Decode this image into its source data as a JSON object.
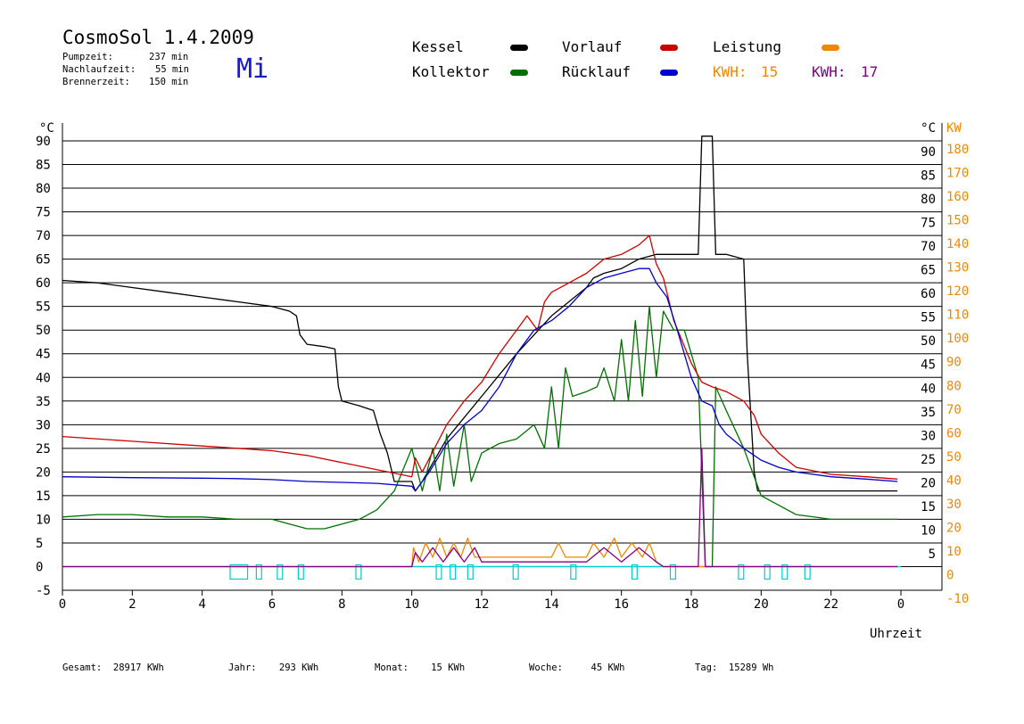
{
  "header": {
    "title": "CosmoSol 1.4.2009",
    "day": "Mi",
    "info": [
      {
        "label": "Pumpzeit:",
        "value": "237 min"
      },
      {
        "label": "Nachlaufzeit:",
        "value": "55 min"
      },
      {
        "label": "Brennerzeit:",
        "value": "150 min"
      }
    ]
  },
  "legend": {
    "kessel": "Kessel",
    "kollektor": "Kollektor",
    "vorlauf": "Vorlauf",
    "ruecklauf": "Rücklauf",
    "leistung": "Leistung",
    "kwh1_label": "KWH:",
    "kwh1_value": "15",
    "kwh2_label": "KWH:",
    "kwh2_value": "17"
  },
  "colors": {
    "kessel": "#000000",
    "kollektor": "#007000",
    "vorlauf": "#cc0000",
    "ruecklauf": "#0000cc",
    "leistung": "#ee8800",
    "kwh2": "#800080",
    "pump": "#00cccc",
    "day": "#1a1acc"
  },
  "footer": {
    "gesamt": "Gesamt:  28917 KWh",
    "jahr": "Jahr:    293 KWh",
    "monat": "Monat:    15 KWh",
    "woche": "Woche:     45 KWh",
    "tag": "Tag:  15289 Wh"
  },
  "chart_data": {
    "type": "line",
    "xlabel": "Uhrzeit",
    "ylabel_left": "°C",
    "ylabel_right_c": "°C",
    "ylabel_right_kw": "KW",
    "xlim": [
      0,
      24
    ],
    "ylim": [
      -5,
      90
    ],
    "ylim_kw": [
      -10,
      180
    ],
    "x_ticks": [
      "0",
      "2",
      "4",
      "6",
      "8",
      "10",
      "12",
      "14",
      "16",
      "18",
      "20",
      "22",
      "0"
    ],
    "y_ticks_left": [
      "-5",
      "0",
      "5",
      "10",
      "15",
      "20",
      "25",
      "30",
      "35",
      "40",
      "45",
      "50",
      "55",
      "60",
      "65",
      "70",
      "75",
      "80",
      "85",
      "90"
    ],
    "y_ticks_right_c": [
      "5",
      "10",
      "15",
      "20",
      "25",
      "30",
      "35",
      "40",
      "45",
      "50",
      "55",
      "60",
      "65",
      "70",
      "75",
      "80",
      "85",
      "90"
    ],
    "y_ticks_right_kw": [
      "-10",
      "0",
      "10",
      "20",
      "30",
      "40",
      "50",
      "60",
      "70",
      "80",
      "90",
      "100",
      "110",
      "120",
      "130",
      "140",
      "150",
      "160",
      "170",
      "180"
    ],
    "grid": true,
    "series": [
      {
        "name": "Kessel",
        "key": "kessel",
        "points": [
          [
            0,
            60.5
          ],
          [
            1,
            60
          ],
          [
            2,
            59
          ],
          [
            3,
            58
          ],
          [
            4,
            57
          ],
          [
            5,
            56
          ],
          [
            6,
            55
          ],
          [
            6.5,
            54
          ],
          [
            6.7,
            53
          ],
          [
            6.8,
            49
          ],
          [
            7,
            47
          ],
          [
            7.5,
            46.5
          ],
          [
            7.8,
            46
          ],
          [
            7.9,
            38
          ],
          [
            8,
            35
          ],
          [
            8.5,
            34
          ],
          [
            8.9,
            33
          ],
          [
            9.1,
            28
          ],
          [
            9.3,
            24
          ],
          [
            9.5,
            18
          ],
          [
            10,
            18
          ],
          [
            10.1,
            16
          ],
          [
            10.3,
            18
          ],
          [
            11,
            27
          ],
          [
            12,
            36
          ],
          [
            13,
            45
          ],
          [
            14,
            53
          ],
          [
            14.5,
            56
          ],
          [
            15,
            59
          ],
          [
            15.2,
            61
          ],
          [
            15.5,
            62
          ],
          [
            16,
            63
          ],
          [
            16.5,
            65
          ],
          [
            17,
            66
          ],
          [
            17.5,
            66
          ],
          [
            18,
            66
          ],
          [
            18.2,
            66
          ],
          [
            18.3,
            91
          ],
          [
            18.6,
            91
          ],
          [
            18.7,
            66
          ],
          [
            19,
            66
          ],
          [
            19.5,
            65
          ],
          [
            19.6,
            45
          ],
          [
            19.8,
            20
          ],
          [
            19.9,
            16
          ],
          [
            21,
            16
          ],
          [
            23.9,
            16
          ]
        ]
      },
      {
        "name": "Kollektor",
        "key": "kollektor",
        "points": [
          [
            0,
            10.5
          ],
          [
            1,
            11
          ],
          [
            2,
            11
          ],
          [
            3,
            10.5
          ],
          [
            4,
            10.5
          ],
          [
            5,
            10
          ],
          [
            6,
            10
          ],
          [
            6.5,
            9
          ],
          [
            7,
            8
          ],
          [
            7.5,
            8
          ],
          [
            8,
            9
          ],
          [
            8.5,
            10
          ],
          [
            9,
            12
          ],
          [
            9.5,
            16
          ],
          [
            10,
            25
          ],
          [
            10.1,
            22
          ],
          [
            10.3,
            16
          ],
          [
            10.6,
            25
          ],
          [
            10.8,
            16
          ],
          [
            11,
            28
          ],
          [
            11.2,
            17
          ],
          [
            11.5,
            30
          ],
          [
            11.7,
            18
          ],
          [
            12,
            24
          ],
          [
            12.5,
            26
          ],
          [
            13,
            27
          ],
          [
            13.5,
            30
          ],
          [
            13.8,
            25
          ],
          [
            14,
            38
          ],
          [
            14.2,
            25
          ],
          [
            14.4,
            42
          ],
          [
            14.6,
            36
          ],
          [
            15,
            37
          ],
          [
            15.3,
            38
          ],
          [
            15.5,
            42
          ],
          [
            15.8,
            35
          ],
          [
            16,
            48
          ],
          [
            16.2,
            35
          ],
          [
            16.4,
            52
          ],
          [
            16.6,
            36
          ],
          [
            16.8,
            55
          ],
          [
            17,
            40
          ],
          [
            17.2,
            54
          ],
          [
            17.5,
            50
          ],
          [
            17.8,
            50
          ],
          [
            18,
            45
          ],
          [
            18.2,
            40
          ],
          [
            18.4,
            0
          ],
          [
            18.6,
            0
          ],
          [
            18.7,
            38
          ],
          [
            19,
            33
          ],
          [
            19.5,
            25
          ],
          [
            20,
            15
          ],
          [
            21,
            11
          ],
          [
            22,
            10
          ],
          [
            23,
            10
          ],
          [
            23.9,
            10
          ]
        ]
      },
      {
        "name": "Vorlauf",
        "key": "vorlauf",
        "points": [
          [
            0,
            27.5
          ],
          [
            2,
            26.5
          ],
          [
            4,
            25.5
          ],
          [
            5,
            25
          ],
          [
            6,
            24.5
          ],
          [
            7,
            23.5
          ],
          [
            8,
            22
          ],
          [
            9,
            20.5
          ],
          [
            10,
            19
          ],
          [
            10.1,
            23
          ],
          [
            10.3,
            20
          ],
          [
            11,
            30
          ],
          [
            11.5,
            35
          ],
          [
            12,
            39
          ],
          [
            12.5,
            45
          ],
          [
            13,
            50
          ],
          [
            13.3,
            53
          ],
          [
            13.6,
            50
          ],
          [
            13.8,
            56
          ],
          [
            14,
            58
          ],
          [
            14.5,
            60
          ],
          [
            15,
            62
          ],
          [
            15.5,
            65
          ],
          [
            16,
            66
          ],
          [
            16.5,
            68
          ],
          [
            16.8,
            70
          ],
          [
            17,
            64
          ],
          [
            17.2,
            61
          ],
          [
            17.5,
            52
          ],
          [
            18,
            43
          ],
          [
            18.3,
            39
          ],
          [
            18.6,
            38
          ],
          [
            19,
            37
          ],
          [
            19.5,
            35
          ],
          [
            19.8,
            32
          ],
          [
            20,
            28
          ],
          [
            20.5,
            24
          ],
          [
            21,
            21
          ],
          [
            22,
            19.5
          ],
          [
            23,
            19
          ],
          [
            23.9,
            18.5
          ]
        ]
      },
      {
        "name": "Rücklauf",
        "key": "ruecklauf",
        "points": [
          [
            0,
            19
          ],
          [
            2,
            18.8
          ],
          [
            4,
            18.7
          ],
          [
            5,
            18.6
          ],
          [
            6,
            18.4
          ],
          [
            7,
            18
          ],
          [
            8,
            17.8
          ],
          [
            9,
            17.6
          ],
          [
            10,
            17
          ],
          [
            10.1,
            16
          ],
          [
            10.5,
            20
          ],
          [
            11,
            26
          ],
          [
            11.5,
            30
          ],
          [
            12,
            33
          ],
          [
            12.5,
            38
          ],
          [
            13,
            45
          ],
          [
            13.5,
            50
          ],
          [
            14,
            52
          ],
          [
            14.5,
            55
          ],
          [
            15,
            59
          ],
          [
            15.5,
            61
          ],
          [
            16,
            62
          ],
          [
            16.5,
            63
          ],
          [
            16.8,
            63
          ],
          [
            17,
            60
          ],
          [
            17.3,
            57
          ],
          [
            17.6,
            50
          ],
          [
            18,
            40
          ],
          [
            18.3,
            35
          ],
          [
            18.6,
            34
          ],
          [
            18.8,
            30
          ],
          [
            19,
            28
          ],
          [
            19.5,
            25
          ],
          [
            20,
            22.5
          ],
          [
            20.5,
            21
          ],
          [
            21,
            20
          ],
          [
            22,
            19
          ],
          [
            23,
            18.5
          ],
          [
            23.9,
            18
          ]
        ]
      },
      {
        "name": "Leistung",
        "key": "leistung",
        "points": [
          [
            0,
            0
          ],
          [
            10,
            0
          ],
          [
            10.05,
            4
          ],
          [
            10.2,
            1
          ],
          [
            10.4,
            5
          ],
          [
            10.6,
            2
          ],
          [
            10.8,
            6
          ],
          [
            11,
            2
          ],
          [
            11.2,
            5
          ],
          [
            11.4,
            2
          ],
          [
            11.6,
            6
          ],
          [
            11.8,
            2
          ],
          [
            12,
            2
          ],
          [
            13,
            2
          ],
          [
            14,
            2
          ],
          [
            14.2,
            5
          ],
          [
            14.4,
            2
          ],
          [
            15,
            2
          ],
          [
            15.2,
            5
          ],
          [
            15.5,
            2
          ],
          [
            15.8,
            6
          ],
          [
            16,
            2
          ],
          [
            16.3,
            5
          ],
          [
            16.6,
            2
          ],
          [
            16.8,
            5
          ],
          [
            17,
            1
          ],
          [
            17.2,
            0
          ],
          [
            18,
            0
          ],
          [
            23.9,
            0
          ]
        ]
      },
      {
        "name": "KWH 17",
        "key": "kwh2",
        "points": [
          [
            0,
            0
          ],
          [
            10,
            0
          ],
          [
            10.1,
            3
          ],
          [
            10.3,
            1
          ],
          [
            10.6,
            4
          ],
          [
            10.9,
            1
          ],
          [
            11.2,
            4
          ],
          [
            11.5,
            1
          ],
          [
            11.8,
            4
          ],
          [
            12,
            1
          ],
          [
            13,
            1
          ],
          [
            14,
            1
          ],
          [
            15,
            1
          ],
          [
            15.5,
            4
          ],
          [
            16,
            1
          ],
          [
            16.5,
            4
          ],
          [
            17,
            1
          ],
          [
            17.2,
            0
          ],
          [
            18.2,
            0
          ],
          [
            18.3,
            25
          ],
          [
            18.4,
            0
          ],
          [
            23.9,
            0
          ]
        ]
      }
    ],
    "pump_blocks": [
      [
        4.8,
        5.3
      ],
      [
        5.55,
        5.7
      ],
      [
        6.15,
        6.3
      ],
      [
        6.75,
        6.9
      ],
      [
        8.4,
        8.55
      ],
      [
        10.7,
        10.85
      ],
      [
        11.1,
        11.25
      ],
      [
        11.6,
        11.75
      ],
      [
        12.9,
        13.05
      ],
      [
        14.55,
        14.7
      ],
      [
        16.3,
        16.45
      ],
      [
        17.4,
        17.55
      ],
      [
        19.35,
        19.5
      ],
      [
        20.1,
        20.25
      ],
      [
        20.6,
        20.75
      ],
      [
        21.25,
        21.4
      ]
    ]
  }
}
